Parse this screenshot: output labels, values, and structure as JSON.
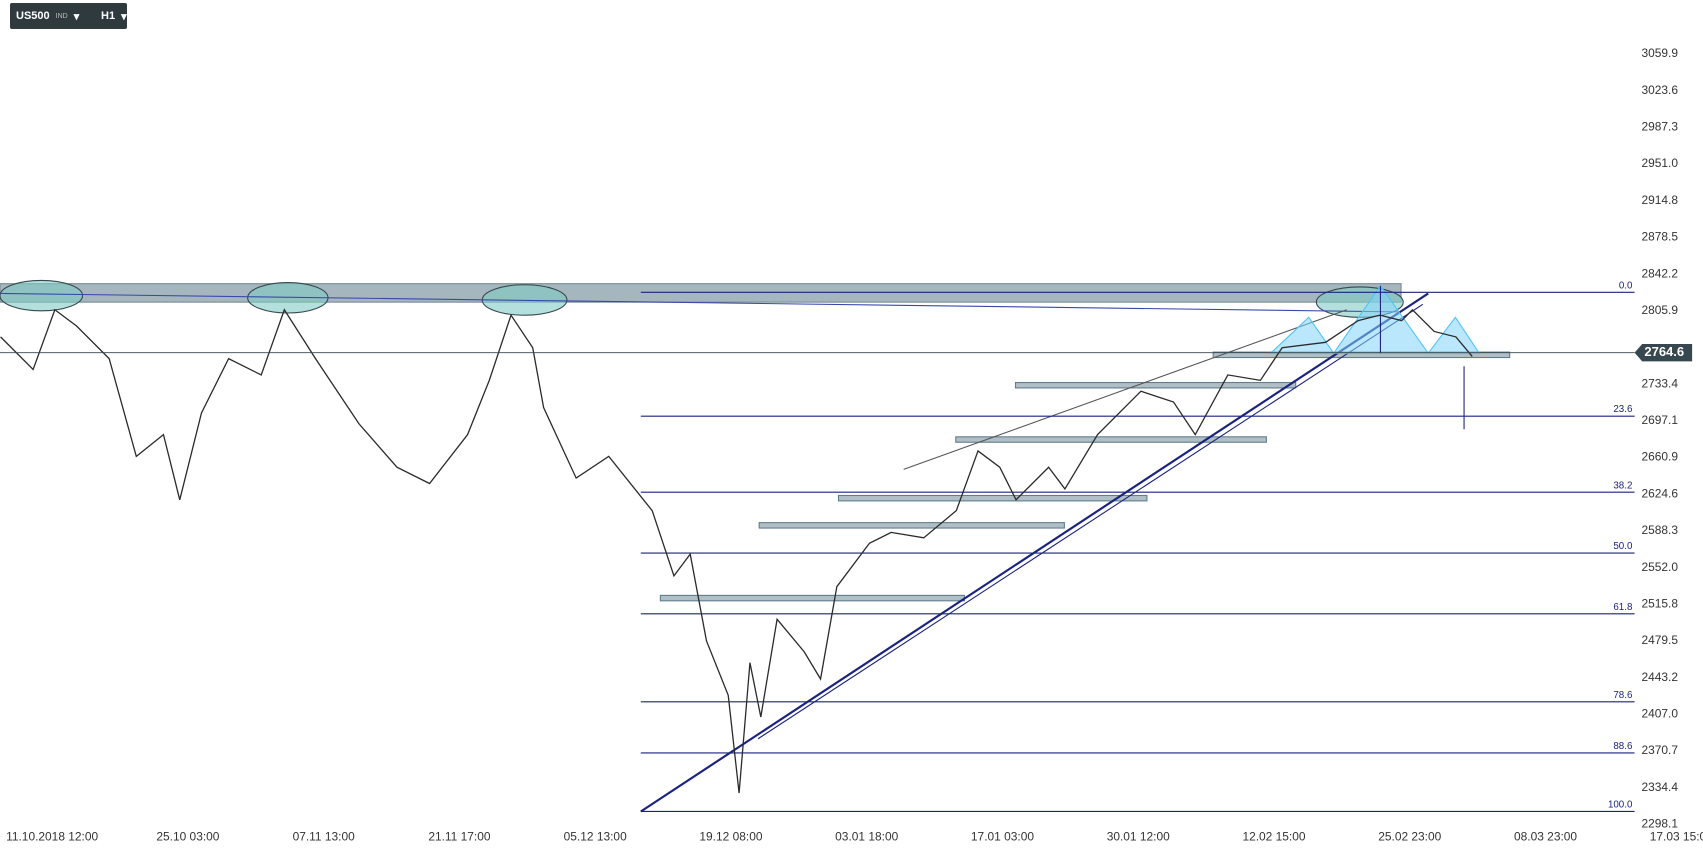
{
  "toolbar": {
    "symbol": "US500",
    "market": "IND",
    "timeframe": "H1"
  },
  "chart_data": {
    "type": "line",
    "color": "#2b2b2b",
    "x": [
      -0.38,
      -0.14,
      0.02,
      0.18,
      0.42,
      0.62,
      0.82,
      0.94,
      1.1,
      1.3,
      1.54,
      1.71,
      1.94,
      2.26,
      2.54,
      2.78,
      3.06,
      3.22,
      3.38,
      3.54,
      3.62,
      3.86,
      4.1,
      4.42,
      4.58,
      4.7,
      4.82,
      4.98,
      5.06,
      5.14,
      5.22,
      5.34,
      5.54,
      5.66,
      5.78,
      6.02,
      6.18,
      6.42,
      6.66,
      6.82,
      6.98,
      7.1,
      7.34,
      7.46,
      7.7,
      8.02,
      8.26,
      8.42,
      8.66,
      8.9,
      9.06,
      9.38,
      9.62,
      9.78,
      9.94,
      10.02,
      10.18,
      10.34,
      10.46
    ],
    "values": [
      2780.2,
      2747.9,
      2807.0,
      2790.9,
      2758.7,
      2662.0,
      2683.5,
      2619.1,
      2705.0,
      2758.7,
      2742.6,
      2807.0,
      2758.7,
      2694.3,
      2651.3,
      2635.2,
      2683.5,
      2737.2,
      2801.6,
      2769.4,
      2710.4,
      2640.6,
      2662.0,
      2608.4,
      2543.9,
      2565.4,
      2479.5,
      2425.8,
      2329.2,
      2458.0,
      2404.4,
      2501.0,
      2468.8,
      2441.9,
      2533.2,
      2576.2,
      2586.9,
      2581.5,
      2608.4,
      2667.4,
      2651.3,
      2619.1,
      2651.3,
      2629.8,
      2683.5,
      2726.5,
      2715.7,
      2683.5,
      2742.6,
      2737.2,
      2769.4,
      2774.8,
      2796.3,
      2801.6,
      2796.3,
      2807.0,
      2785.5,
      2780.2,
      2760.8
    ],
    "xlim": [
      -0.384,
      12.16
    ],
    "xticks": [
      {
        "value": 0,
        "label": "11.10.2018  12:00"
      },
      {
        "value": 1,
        "label": "25.10  03:00"
      },
      {
        "value": 2,
        "label": "07.11  13:00"
      },
      {
        "value": 3,
        "label": "21.11  17:00"
      },
      {
        "value": 4,
        "label": "05.12  13:00"
      },
      {
        "value": 5,
        "label": "19.12  08:00"
      },
      {
        "value": 6,
        "label": "03.01  18:00"
      },
      {
        "value": 7,
        "label": "17.01  03:00"
      },
      {
        "value": 8,
        "label": "30.01  12:00"
      },
      {
        "value": 9,
        "label": "12.02  15:00"
      },
      {
        "value": 10,
        "label": "25.02  23:00"
      },
      {
        "value": 11,
        "label": "08.03  23:00"
      },
      {
        "value": 12,
        "label": "17.03  15:00"
      }
    ],
    "ylim": [
      2297,
      3113
    ],
    "yticks": [
      3059.9,
      3023.6,
      2987.3,
      {
        "value": 2951.0,
        "label": "2951.0"
      },
      2914.8,
      2878.5,
      2842.2,
      2805.9,
      2733.4,
      2697.1,
      2660.9,
      2624.6,
      2588.3,
      {
        "value": 2552.0,
        "label": "2552.0"
      },
      2515.8,
      2479.5,
      2443.2,
      {
        "value": 2407.0,
        "label": "2407.0"
      },
      2370.7,
      2334.4,
      2298.1
    ],
    "last_price": 2764.6,
    "last_price_color": "#37474f",
    "fib_color": "#1a237e",
    "fib_levels": [
      {
        "label": "0.0",
        "value": 2824.2
      },
      {
        "label": "23.6",
        "value": 2701.8
      },
      {
        "label": "38.2",
        "value": 2626.6
      },
      {
        "label": "50.0",
        "value": 2566.5
      },
      {
        "label": "61.8",
        "value": 2506.4
      },
      {
        "label": "78.6",
        "value": 2419.4
      },
      {
        "label": "88.6",
        "value": 2368.9
      },
      {
        "label": "100.0",
        "value": 2311.0
      }
    ],
    "grid": false
  }
}
